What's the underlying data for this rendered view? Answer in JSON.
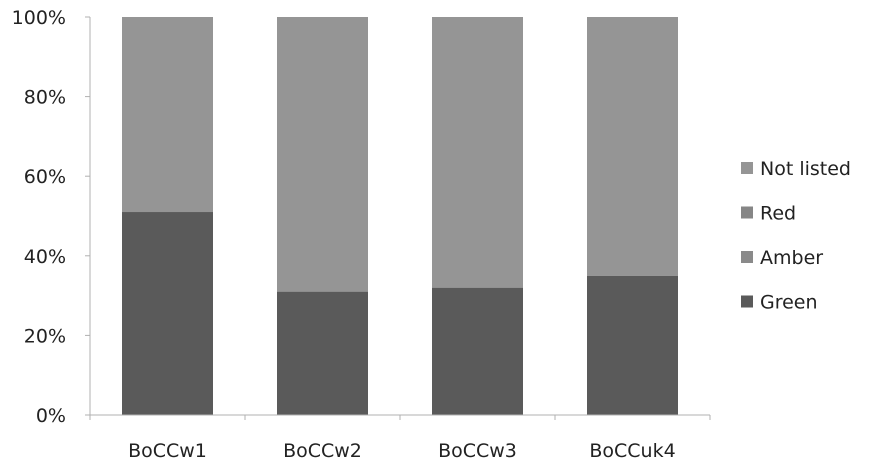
{
  "chart_data": {
    "type": "bar",
    "stacked": true,
    "percent": true,
    "categories": [
      "BoCCw1",
      "BoCCw2",
      "BoCCw3",
      "BoCCuk4"
    ],
    "series": [
      {
        "name": "Green",
        "values": [
          51,
          31,
          32,
          35
        ],
        "color": "#5a5a5a"
      },
      {
        "name": "Amber",
        "values": [
          0,
          0,
          0,
          0
        ],
        "color": "#8a8a8a"
      },
      {
        "name": "Red",
        "values": [
          0,
          0,
          0,
          0
        ],
        "color": "#868686"
      },
      {
        "name": "Not listed",
        "values": [
          49,
          69,
          68,
          65
        ],
        "color": "#959595"
      }
    ],
    "legend_order": [
      "Not listed",
      "Red",
      "Amber",
      "Green"
    ],
    "legend_position": "right",
    "ylim": [
      0,
      100
    ],
    "yticks": [
      "0%",
      "20%",
      "40%",
      "60%",
      "80%",
      "100%"
    ],
    "grid": false,
    "title": "",
    "xlabel": "",
    "ylabel": ""
  }
}
